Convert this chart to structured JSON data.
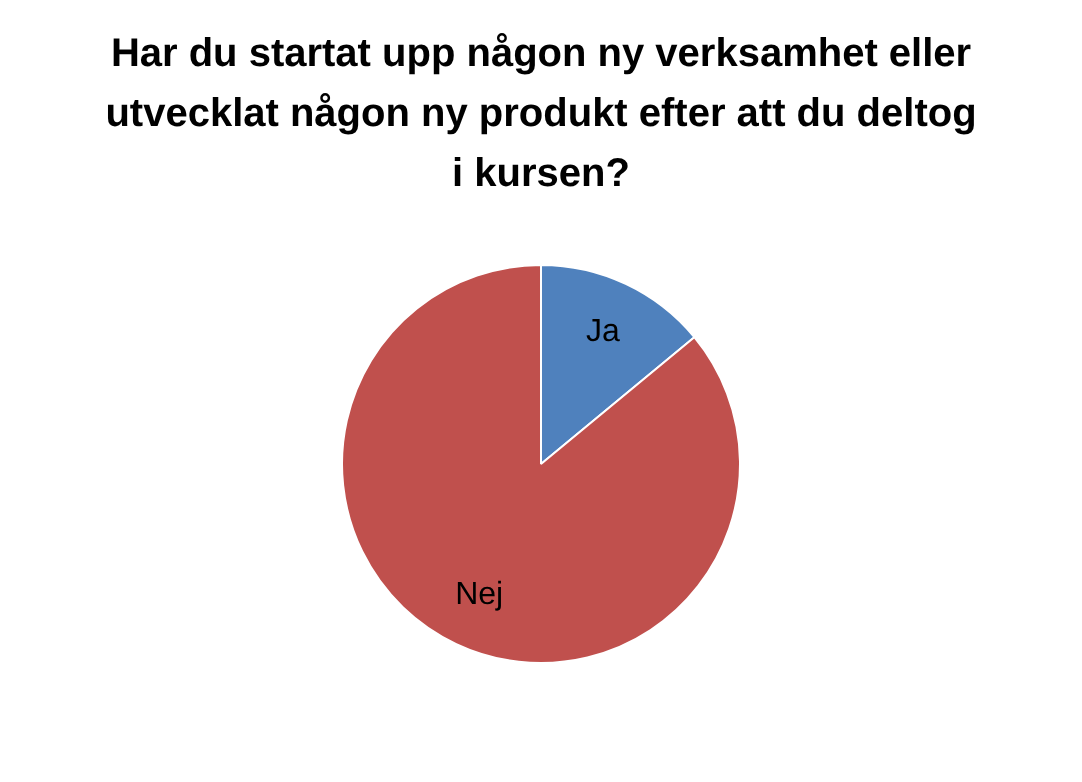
{
  "chart_data": {
    "type": "pie",
    "title": "Har du startat upp någon ny verksamhet eller utvecklat någon ny produkt efter att du deltog i kursen?",
    "categories": [
      "Ja",
      "Nej"
    ],
    "values": [
      14,
      86
    ],
    "colors": [
      "#4f81bd",
      "#c0504d"
    ],
    "legend": false
  }
}
